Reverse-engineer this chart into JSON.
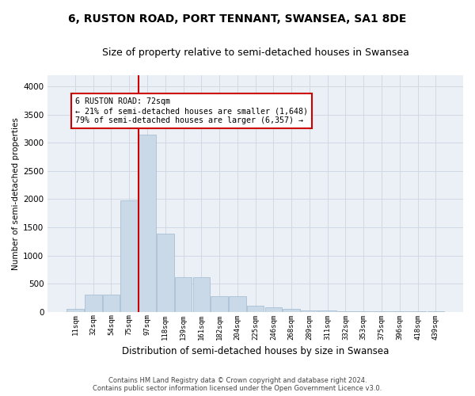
{
  "title": "6, RUSTON ROAD, PORT TENNANT, SWANSEA, SA1 8DE",
  "subtitle": "Size of property relative to semi-detached houses in Swansea",
  "xlabel": "Distribution of semi-detached houses by size in Swansea",
  "ylabel": "Number of semi-detached properties",
  "footer_line1": "Contains HM Land Registry data © Crown copyright and database right 2024.",
  "footer_line2": "Contains public sector information licensed under the Open Government Licence v3.0.",
  "bar_labels": [
    "11sqm",
    "32sqm",
    "54sqm",
    "75sqm",
    "97sqm",
    "118sqm",
    "139sqm",
    "161sqm",
    "182sqm",
    "204sqm",
    "225sqm",
    "246sqm",
    "268sqm",
    "289sqm",
    "311sqm",
    "332sqm",
    "353sqm",
    "375sqm",
    "396sqm",
    "418sqm",
    "439sqm"
  ],
  "bar_values": [
    50,
    300,
    305,
    1980,
    3150,
    1390,
    620,
    620,
    280,
    280,
    105,
    75,
    50,
    30,
    25,
    10,
    8,
    5,
    3,
    3,
    2
  ],
  "bar_color": "#c9d9e8",
  "bar_edgecolor": "#a0b8d0",
  "ylim": [
    0,
    4200
  ],
  "yticks": [
    0,
    500,
    1000,
    1500,
    2000,
    2500,
    3000,
    3500,
    4000
  ],
  "red_line_x": 3.5,
  "annotation_text": "6 RUSTON ROAD: 72sqm\n← 21% of semi-detached houses are smaller (1,648)\n79% of semi-detached houses are larger (6,357) →",
  "annotation_box_color": "#ffffff",
  "annotation_box_edgecolor": "#cc0000",
  "grid_color": "#d0d8e4",
  "bg_color": "#eaf0f6",
  "title_fontsize": 10,
  "subtitle_fontsize": 9
}
